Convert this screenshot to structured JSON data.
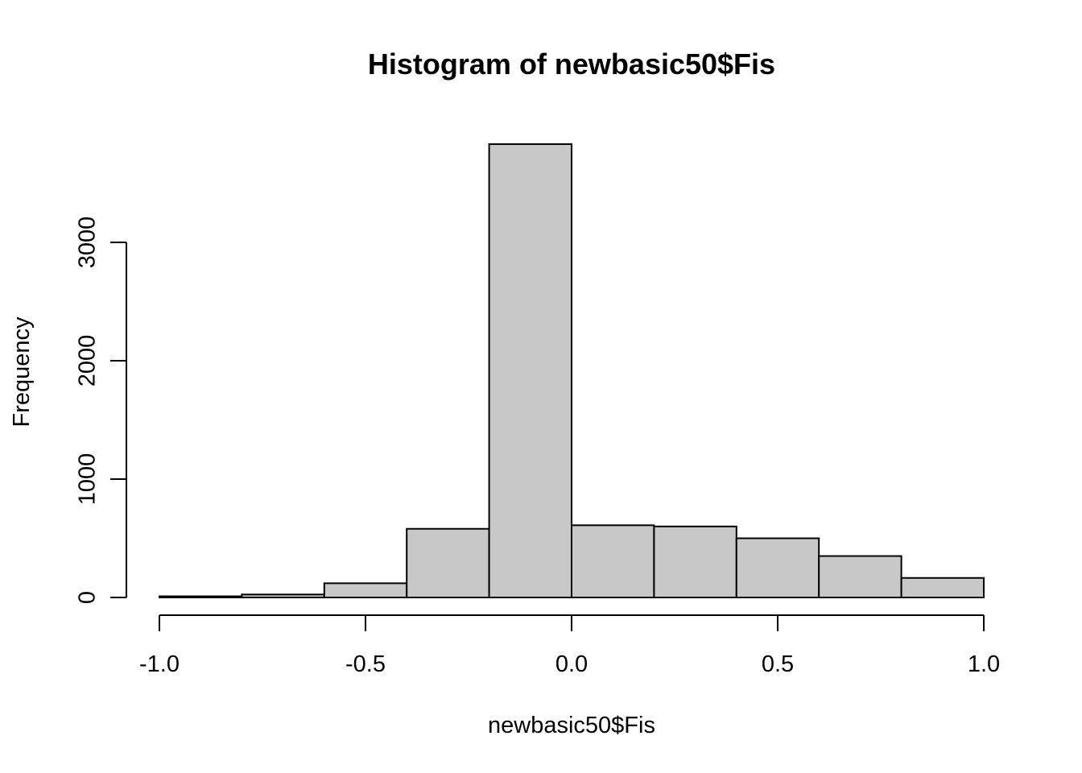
{
  "chart_data": {
    "type": "bar",
    "title": "Histogram of newbasic50$Fis",
    "xlabel": "newbasic50$Fis",
    "ylabel": "Frequency",
    "xlim": [
      -1.0,
      1.0
    ],
    "ylim": [
      0,
      3850
    ],
    "x_ticks": [
      "-1.0",
      "-0.5",
      "0.0",
      "0.5",
      "1.0"
    ],
    "x_tick_values": [
      -1.0,
      -0.5,
      0.0,
      0.5,
      1.0
    ],
    "y_ticks": [
      "0",
      "1000",
      "2000",
      "3000"
    ],
    "y_tick_values": [
      0,
      1000,
      2000,
      3000
    ],
    "bins": [
      {
        "x0": -1.0,
        "x1": -0.8,
        "value": 10
      },
      {
        "x0": -0.8,
        "x1": -0.6,
        "value": 25
      },
      {
        "x0": -0.6,
        "x1": -0.4,
        "value": 120
      },
      {
        "x0": -0.4,
        "x1": -0.2,
        "value": 580
      },
      {
        "x0": -0.2,
        "x1": 0.0,
        "value": 3830
      },
      {
        "x0": 0.0,
        "x1": 0.2,
        "value": 610
      },
      {
        "x0": 0.2,
        "x1": 0.4,
        "value": 600
      },
      {
        "x0": 0.4,
        "x1": 0.6,
        "value": 500
      },
      {
        "x0": 0.6,
        "x1": 0.8,
        "value": 350
      },
      {
        "x0": 0.8,
        "x1": 1.0,
        "value": 165
      }
    ],
    "bar_fill": "#c8c8c8",
    "bar_stroke": "#000000",
    "grid": false,
    "legend": "none"
  }
}
